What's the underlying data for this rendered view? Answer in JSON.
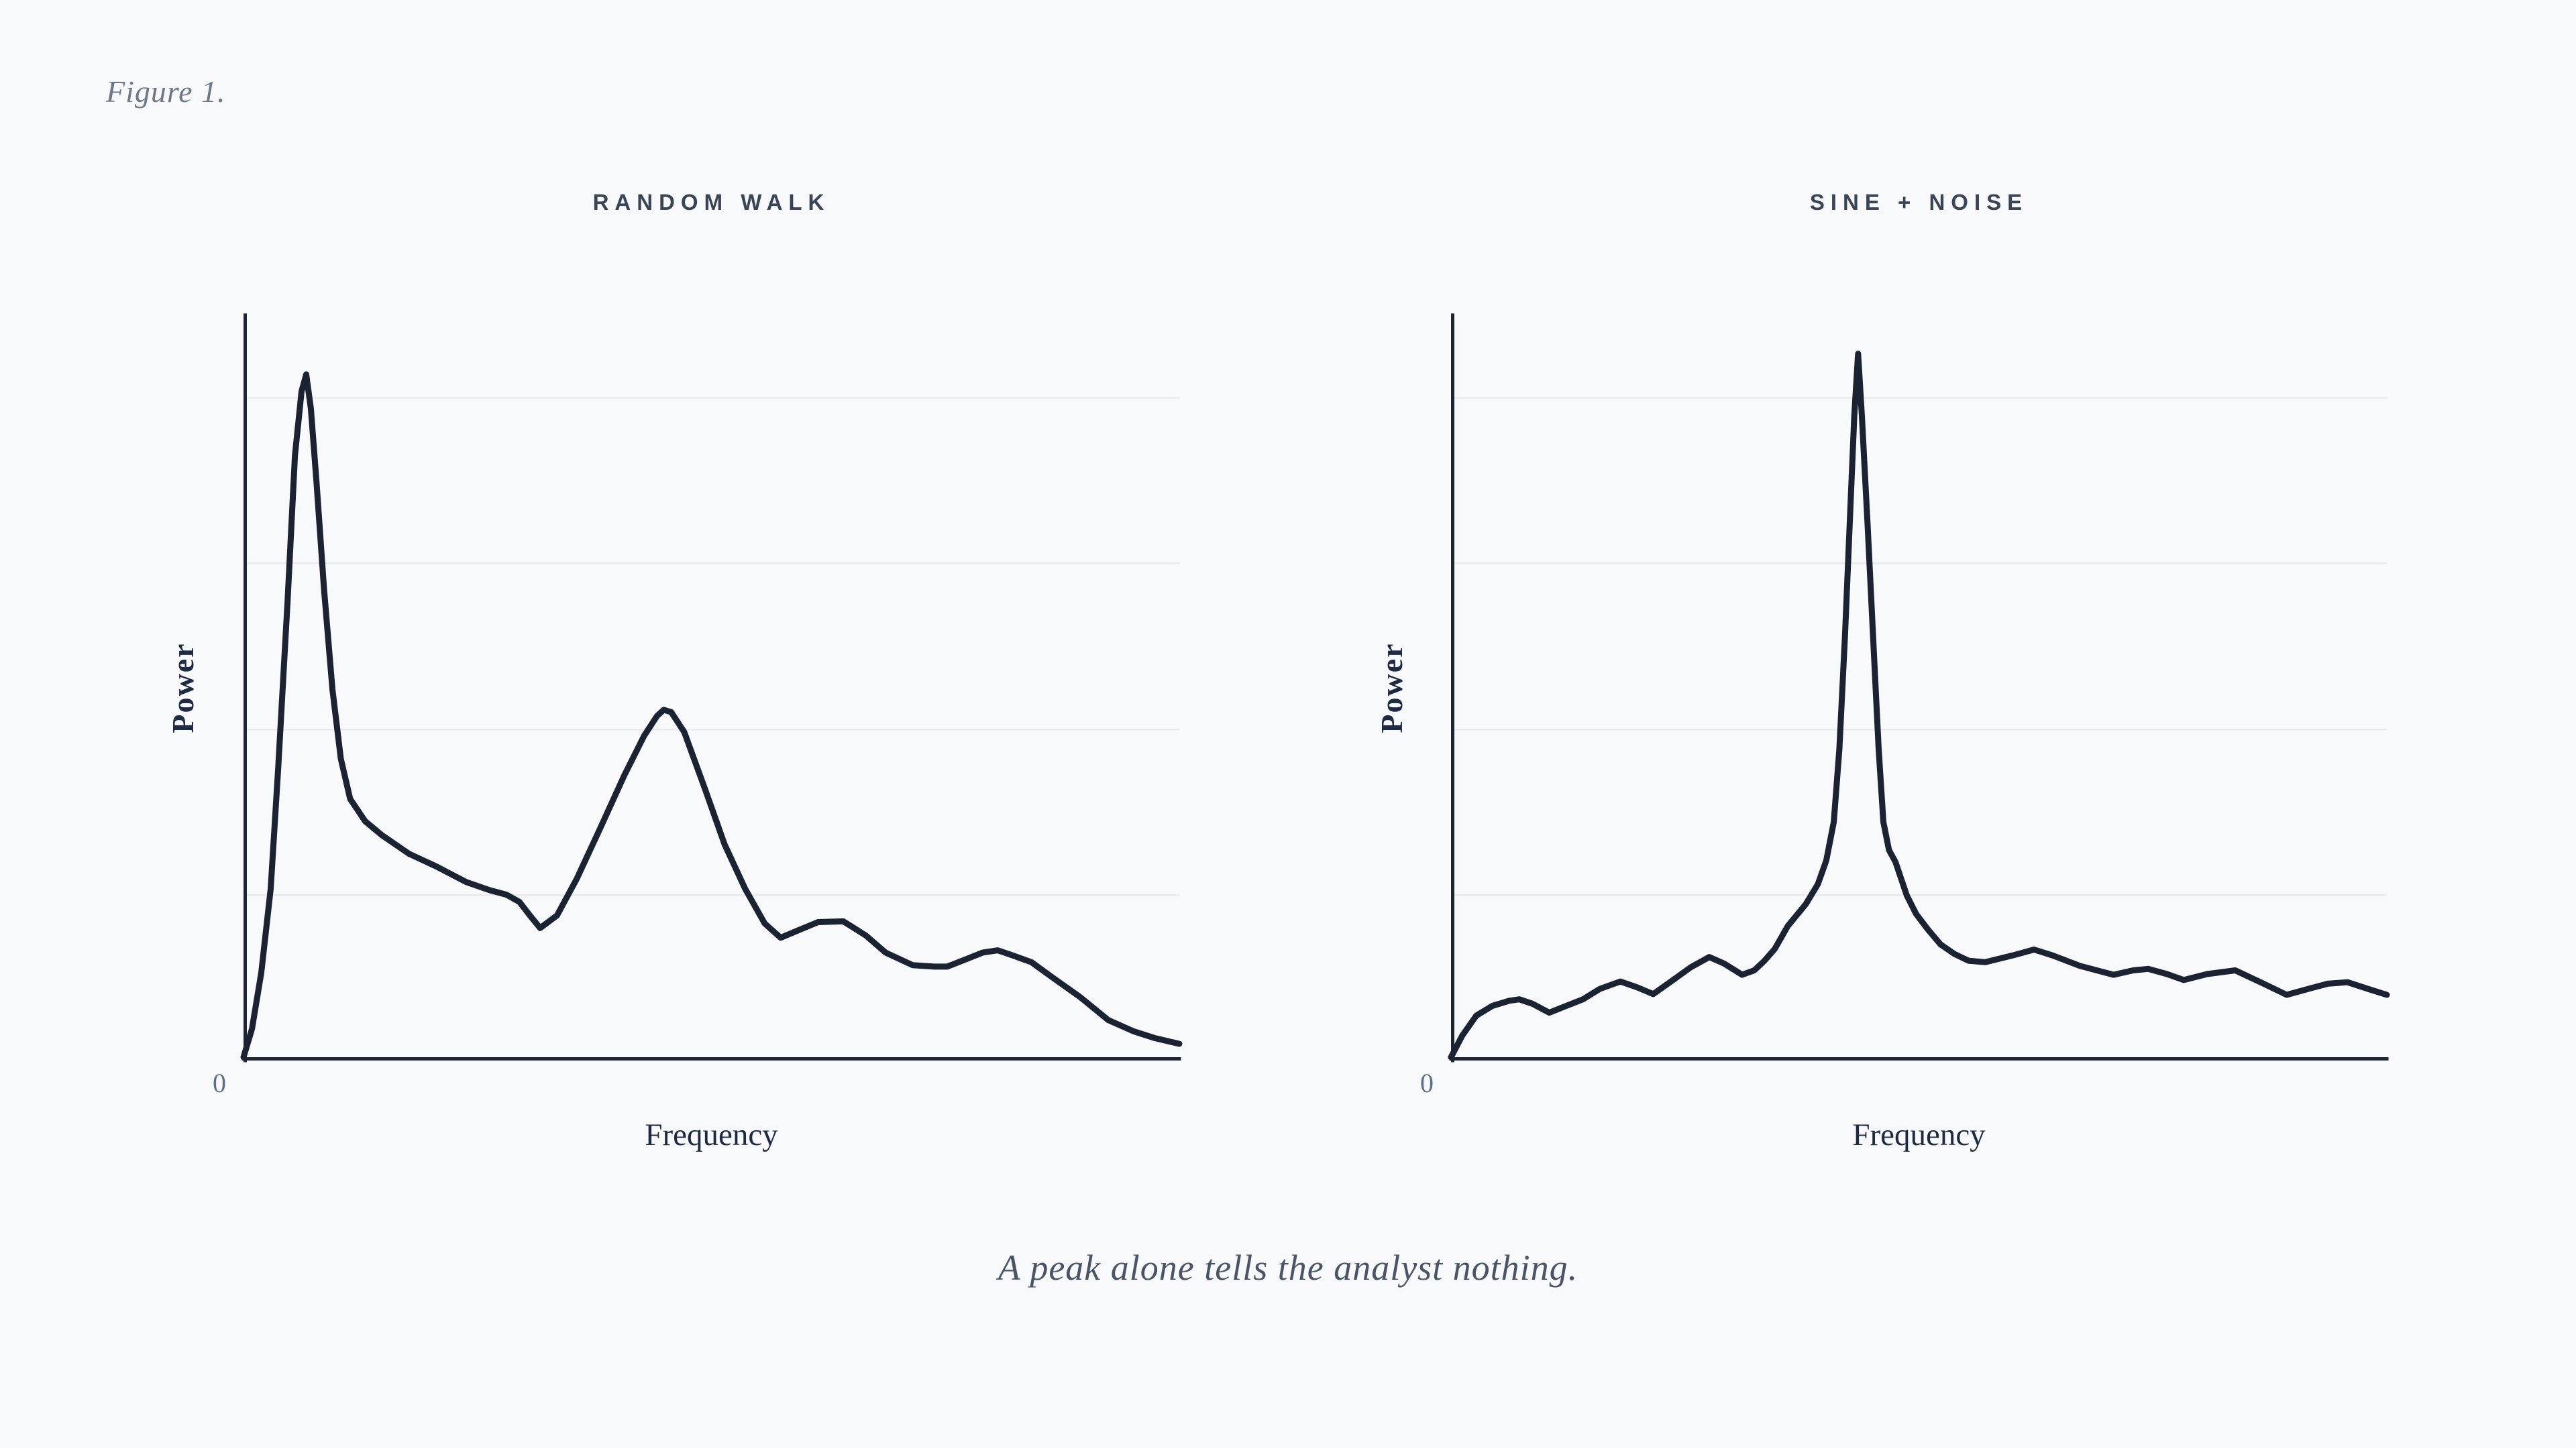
{
  "figure_label": "Figure 1.",
  "caption": "A peak alone tells the analyst nothing.",
  "colors": {
    "background": "#f8f9fa",
    "curve_ink": "#1b2332",
    "axis_ink": "#1e2636",
    "gridline": "#e8eaed",
    "panel_title": "#3a4457",
    "figure_label": "#6e7888",
    "zero_tick": "#5d6e88",
    "axis_label": "#1e2a44",
    "caption": "#4a5468"
  },
  "chart_data": [
    {
      "type": "line",
      "title": "RANDOM WALK",
      "xlabel": "Frequency",
      "ylabel": "Power",
      "origin_label": "0",
      "xlim": [
        0,
        1
      ],
      "ylim": [
        0,
        1
      ],
      "grid": "horizontal-only",
      "grid_levels": [
        0.222,
        0.444,
        0.667,
        0.889
      ],
      "legend": "none",
      "description": "Broad low-frequency peak near f=0.07 reaching ~0.92 of full scale, a secondary broad hump near f=0.45 reaching ~0.47, then small bumps near f=0.6 and f=0.73 decaying to ~0.02 at the right edge.",
      "series": [
        {
          "name": "power-spectrum",
          "points": [
            [
              0.0,
              0.0
            ],
            [
              0.009,
              0.038
            ],
            [
              0.019,
              0.114
            ],
            [
              0.029,
              0.227
            ],
            [
              0.037,
              0.388
            ],
            [
              0.047,
              0.613
            ],
            [
              0.055,
              0.811
            ],
            [
              0.062,
              0.897
            ],
            [
              0.067,
              0.92
            ],
            [
              0.072,
              0.874
            ],
            [
              0.078,
              0.775
            ],
            [
              0.086,
              0.631
            ],
            [
              0.095,
              0.496
            ],
            [
              0.104,
              0.402
            ],
            [
              0.114,
              0.348
            ],
            [
              0.13,
              0.318
            ],
            [
              0.148,
              0.299
            ],
            [
              0.177,
              0.274
            ],
            [
              0.206,
              0.257
            ],
            [
              0.238,
              0.236
            ],
            [
              0.263,
              0.225
            ],
            [
              0.281,
              0.219
            ],
            [
              0.295,
              0.209
            ],
            [
              0.306,
              0.191
            ],
            [
              0.317,
              0.174
            ],
            [
              0.335,
              0.191
            ],
            [
              0.356,
              0.24
            ],
            [
              0.381,
              0.308
            ],
            [
              0.407,
              0.38
            ],
            [
              0.428,
              0.433
            ],
            [
              0.442,
              0.46
            ],
            [
              0.449,
              0.468
            ],
            [
              0.457,
              0.465
            ],
            [
              0.471,
              0.438
            ],
            [
              0.493,
              0.362
            ],
            [
              0.514,
              0.287
            ],
            [
              0.536,
              0.227
            ],
            [
              0.557,
              0.18
            ],
            [
              0.574,
              0.161
            ],
            [
              0.593,
              0.171
            ],
            [
              0.614,
              0.182
            ],
            [
              0.641,
              0.183
            ],
            [
              0.665,
              0.164
            ],
            [
              0.686,
              0.141
            ],
            [
              0.715,
              0.124
            ],
            [
              0.738,
              0.122
            ],
            [
              0.752,
              0.122
            ],
            [
              0.772,
              0.132
            ],
            [
              0.79,
              0.141
            ],
            [
              0.806,
              0.144
            ],
            [
              0.822,
              0.137
            ],
            [
              0.842,
              0.128
            ],
            [
              0.865,
              0.107
            ],
            [
              0.894,
              0.081
            ],
            [
              0.924,
              0.05
            ],
            [
              0.951,
              0.035
            ],
            [
              0.973,
              0.026
            ],
            [
              1.0,
              0.018
            ]
          ]
        }
      ]
    },
    {
      "type": "line",
      "title": "SINE + NOISE",
      "xlabel": "Frequency",
      "ylabel": "Power",
      "origin_label": "0",
      "xlim": [
        0,
        1
      ],
      "ylim": [
        0,
        1
      ],
      "grid": "horizontal-only",
      "grid_levels": [
        0.222,
        0.444,
        0.667,
        0.889
      ],
      "legend": "none",
      "description": "Low noisy baseline around 0.08-0.14 of full scale with a single very sharp spike at f=0.435 reaching ~0.95, flaring shoulders at its base, then a wiggly tail ending near 0.08.",
      "series": [
        {
          "name": "power-spectrum",
          "points": [
            [
              0.0,
              0.0
            ],
            [
              0.012,
              0.029
            ],
            [
              0.027,
              0.056
            ],
            [
              0.044,
              0.069
            ],
            [
              0.062,
              0.076
            ],
            [
              0.073,
              0.078
            ],
            [
              0.087,
              0.072
            ],
            [
              0.105,
              0.06
            ],
            [
              0.123,
              0.069
            ],
            [
              0.141,
              0.078
            ],
            [
              0.159,
              0.092
            ],
            [
              0.181,
              0.102
            ],
            [
              0.199,
              0.094
            ],
            [
              0.216,
              0.085
            ],
            [
              0.234,
              0.101
            ],
            [
              0.256,
              0.121
            ],
            [
              0.276,
              0.135
            ],
            [
              0.292,
              0.126
            ],
            [
              0.311,
              0.111
            ],
            [
              0.324,
              0.117
            ],
            [
              0.335,
              0.13
            ],
            [
              0.346,
              0.146
            ],
            [
              0.36,
              0.177
            ],
            [
              0.379,
              0.206
            ],
            [
              0.392,
              0.233
            ],
            [
              0.401,
              0.265
            ],
            [
              0.409,
              0.317
            ],
            [
              0.415,
              0.415
            ],
            [
              0.421,
              0.568
            ],
            [
              0.427,
              0.748
            ],
            [
              0.431,
              0.865
            ],
            [
              0.435,
              0.948
            ],
            [
              0.439,
              0.865
            ],
            [
              0.445,
              0.721
            ],
            [
              0.451,
              0.568
            ],
            [
              0.457,
              0.415
            ],
            [
              0.462,
              0.317
            ],
            [
              0.468,
              0.279
            ],
            [
              0.475,
              0.263
            ],
            [
              0.487,
              0.218
            ],
            [
              0.497,
              0.193
            ],
            [
              0.509,
              0.173
            ],
            [
              0.523,
              0.152
            ],
            [
              0.538,
              0.139
            ],
            [
              0.553,
              0.13
            ],
            [
              0.571,
              0.128
            ],
            [
              0.6,
              0.137
            ],
            [
              0.623,
              0.145
            ],
            [
              0.643,
              0.137
            ],
            [
              0.672,
              0.123
            ],
            [
              0.708,
              0.111
            ],
            [
              0.729,
              0.117
            ],
            [
              0.745,
              0.119
            ],
            [
              0.765,
              0.112
            ],
            [
              0.783,
              0.104
            ],
            [
              0.808,
              0.112
            ],
            [
              0.838,
              0.117
            ],
            [
              0.865,
              0.101
            ],
            [
              0.893,
              0.084
            ],
            [
              0.916,
              0.092
            ],
            [
              0.937,
              0.099
            ],
            [
              0.958,
              0.101
            ],
            [
              0.98,
              0.092
            ],
            [
              1.0,
              0.084
            ]
          ]
        }
      ]
    }
  ]
}
